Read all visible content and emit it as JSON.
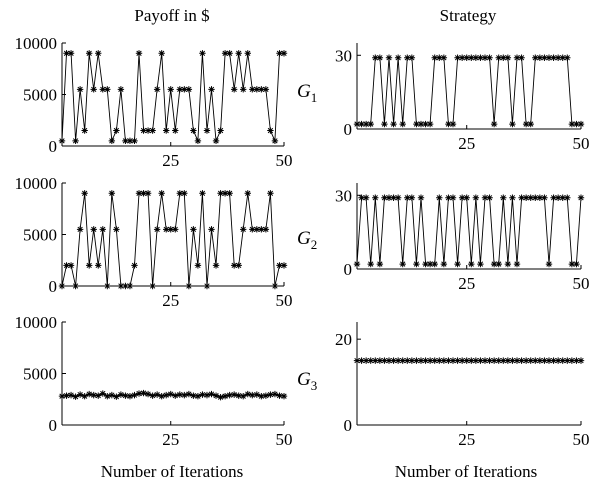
{
  "col_titles": [
    "Payoff in $",
    "Strategy"
  ],
  "row_labels": [
    {
      "main": "G",
      "sub": "1"
    },
    {
      "main": "G",
      "sub": "2"
    },
    {
      "main": "G",
      "sub": "3"
    }
  ],
  "x_label": "Number of Iterations",
  "chart_data": [
    {
      "type": "line",
      "marker": "star",
      "color": "#000000",
      "panel": "G1 payoff",
      "title": "Payoff in $",
      "xlabel": "",
      "ylabel": "",
      "xlim": [
        1,
        50
      ],
      "ylim": [
        0,
        10000
      ],
      "xticks": [
        25,
        50
      ],
      "yticks": [
        0,
        5000,
        10000
      ],
      "x_start": 1,
      "y": [
        500,
        9000,
        9000,
        500,
        5500,
        1500,
        9000,
        5500,
        9000,
        5500,
        5500,
        500,
        1500,
        5500,
        500,
        500,
        500,
        9000,
        1500,
        1500,
        1500,
        5500,
        9000,
        1500,
        5500,
        1500,
        5500,
        5500,
        5500,
        1500,
        500,
        9000,
        1500,
        5500,
        500,
        1500,
        9000,
        9000,
        5500,
        9000,
        5500,
        9000,
        5500,
        5500,
        5500,
        5500,
        1500,
        500,
        9000,
        9000
      ]
    },
    {
      "type": "line",
      "marker": "star",
      "color": "#000000",
      "panel": "G1 strategy",
      "title": "Strategy",
      "xlabel": "",
      "ylabel": "",
      "xlim": [
        1,
        50
      ],
      "ylim": [
        0,
        35
      ],
      "xticks": [
        25,
        50
      ],
      "yticks": [
        0,
        30
      ],
      "x_start": 1,
      "y": [
        2,
        2,
        2,
        2,
        29,
        29,
        2,
        29,
        2,
        29,
        2,
        29,
        29,
        2,
        2,
        2,
        2,
        29,
        29,
        29,
        2,
        2,
        29,
        29,
        29,
        29,
        29,
        29,
        29,
        29,
        2,
        29,
        29,
        29,
        2,
        29,
        29,
        2,
        2,
        29,
        29,
        29,
        29,
        29,
        29,
        29,
        29,
        2,
        2,
        2
      ]
    },
    {
      "type": "line",
      "marker": "star",
      "color": "#000000",
      "panel": "G2 payoff",
      "title": "",
      "xlabel": "",
      "ylabel": "",
      "xlim": [
        1,
        50
      ],
      "ylim": [
        0,
        10000
      ],
      "xticks": [
        25,
        50
      ],
      "yticks": [
        0,
        5000,
        10000
      ],
      "x_start": 1,
      "y": [
        0,
        2000,
        2000,
        0,
        5500,
        9000,
        2000,
        5500,
        2000,
        5500,
        0,
        9000,
        5500,
        0,
        0,
        0,
        2000,
        9000,
        9000,
        9000,
        0,
        5500,
        9000,
        5500,
        5500,
        5500,
        9000,
        9000,
        0,
        5500,
        2000,
        9000,
        0,
        5500,
        2000,
        9000,
        9000,
        9000,
        2000,
        2000,
        5500,
        9000,
        5500,
        5500,
        5500,
        5500,
        9000,
        0,
        2000,
        2000
      ]
    },
    {
      "type": "line",
      "marker": "star",
      "color": "#000000",
      "panel": "G2 strategy",
      "title": "",
      "xlabel": "",
      "ylabel": "",
      "xlim": [
        1,
        50
      ],
      "ylim": [
        0,
        35
      ],
      "xticks": [
        25,
        50
      ],
      "yticks": [
        0,
        30
      ],
      "x_start": 1,
      "y": [
        2,
        29,
        29,
        2,
        29,
        2,
        29,
        29,
        29,
        29,
        2,
        29,
        29,
        2,
        29,
        2,
        2,
        2,
        29,
        2,
        29,
        29,
        2,
        29,
        29,
        2,
        29,
        2,
        29,
        29,
        2,
        2,
        29,
        2,
        29,
        2,
        29,
        29,
        29,
        29,
        29,
        29,
        2,
        29,
        29,
        29,
        29,
        2,
        2,
        29
      ]
    },
    {
      "type": "line",
      "marker": "star",
      "color": "#000000",
      "panel": "G3 payoff",
      "title": "",
      "xlabel": "Number of Iterations",
      "ylabel": "",
      "xlim": [
        1,
        50
      ],
      "ylim": [
        0,
        10000
      ],
      "xticks": [
        25,
        50
      ],
      "yticks": [
        0,
        5000,
        10000
      ],
      "x_start": 1,
      "y": [
        2800,
        2850,
        2900,
        2750,
        2950,
        2800,
        3000,
        2900,
        2850,
        3050,
        2800,
        2900,
        2750,
        2950,
        2850,
        2800,
        2900,
        3050,
        3100,
        3000,
        2850,
        2950,
        2800,
        2900,
        3000,
        2850,
        2950,
        2900,
        3000,
        2850,
        2800,
        2950,
        2900,
        3000,
        2850,
        2700,
        2800,
        2900,
        2950,
        2850,
        2800,
        3000,
        2900,
        2950,
        2800,
        2850,
        2950,
        3000,
        2850,
        2800
      ]
    },
    {
      "type": "line",
      "marker": "star",
      "color": "#000000",
      "panel": "G3 strategy",
      "title": "",
      "xlabel": "Number of Iterations",
      "ylabel": "",
      "xlim": [
        1,
        50
      ],
      "ylim": [
        0,
        24
      ],
      "xticks": [
        25,
        50
      ],
      "yticks": [
        0,
        20
      ],
      "x_start": 1,
      "y": [
        15,
        15,
        15,
        15,
        15,
        15,
        15,
        15,
        15,
        15,
        15,
        15,
        15,
        15,
        15,
        15,
        15,
        15,
        15,
        15,
        15,
        15,
        15,
        15,
        15,
        15,
        15,
        15,
        15,
        15,
        15,
        15,
        15,
        15,
        15,
        15,
        15,
        15,
        15,
        15,
        15,
        15,
        15,
        15,
        15,
        15,
        15,
        15,
        15,
        15
      ]
    }
  ]
}
